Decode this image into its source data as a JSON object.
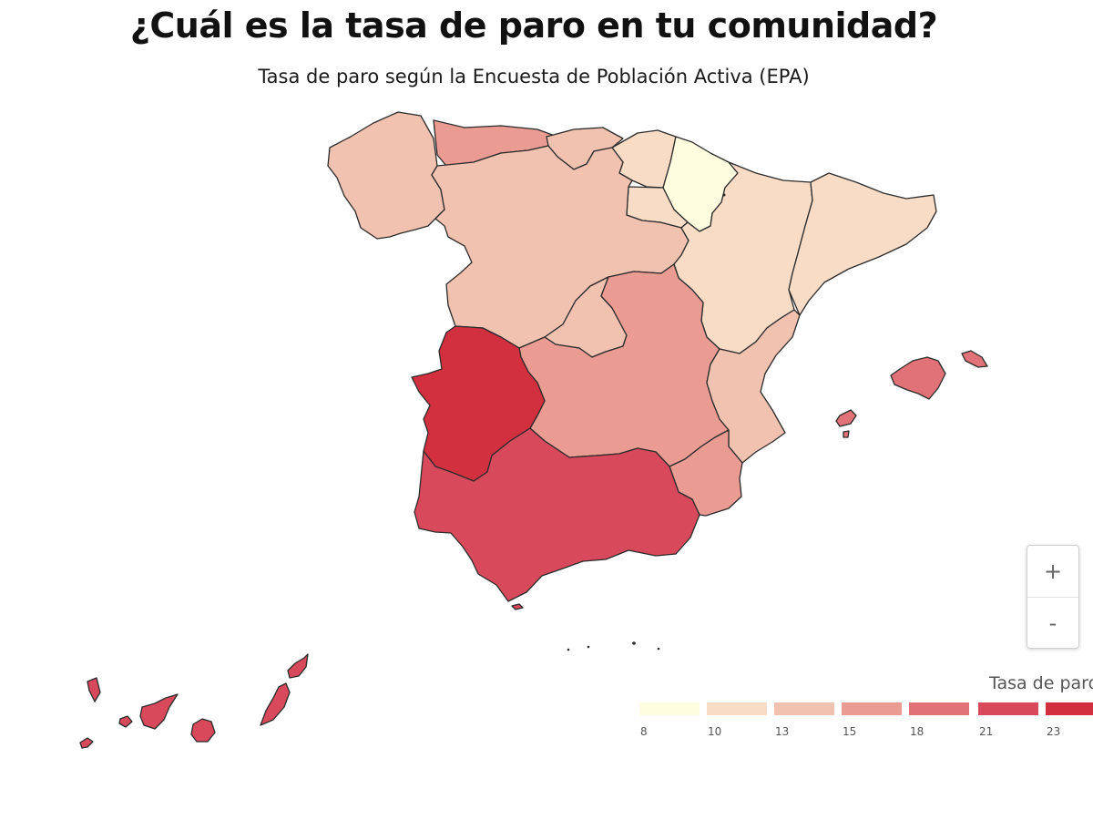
{
  "header": {
    "title": "¿Cuál es la tasa de paro en tu comunidad?",
    "subtitle": "Tasa de paro según la Encuesta de Población Activa (EPA)"
  },
  "map": {
    "colors": {
      "stroke": "#2b2b2b",
      "scale": [
        "#fffde0",
        "#f9dcc6",
        "#f2c2b0",
        "#ea9c93",
        "#e17277",
        "#d84a5b",
        "#d2303f"
      ]
    }
  },
  "controls": {
    "zoom_in_label": "+",
    "zoom_out_label": "-"
  },
  "legend": {
    "title": "Tasa de paro",
    "ticks": [
      "8",
      "10",
      "13",
      "15",
      "18",
      "21",
      "23"
    ]
  }
}
